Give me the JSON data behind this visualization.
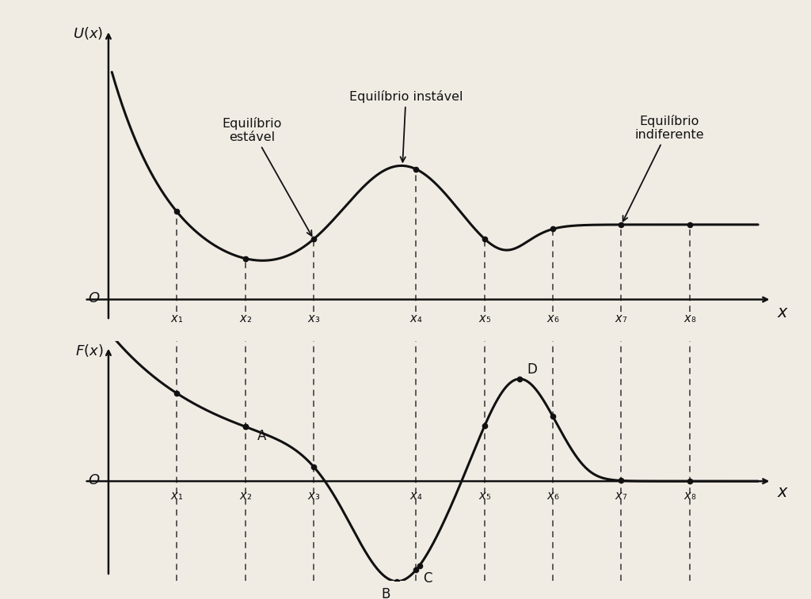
{
  "background_color": "#f0ece4",
  "fig_width": 10.24,
  "fig_height": 7.57,
  "x_labels": [
    "x₁",
    "x₂",
    "x₃",
    "x₄",
    "x₅",
    "x₆",
    "x₇",
    "x₈"
  ],
  "x_positions": [
    1.0,
    2.0,
    3.0,
    4.5,
    5.5,
    6.5,
    7.5,
    8.5
  ],
  "label_color": "#111111",
  "curve_color": "#111111",
  "dashed_color": "#333333"
}
